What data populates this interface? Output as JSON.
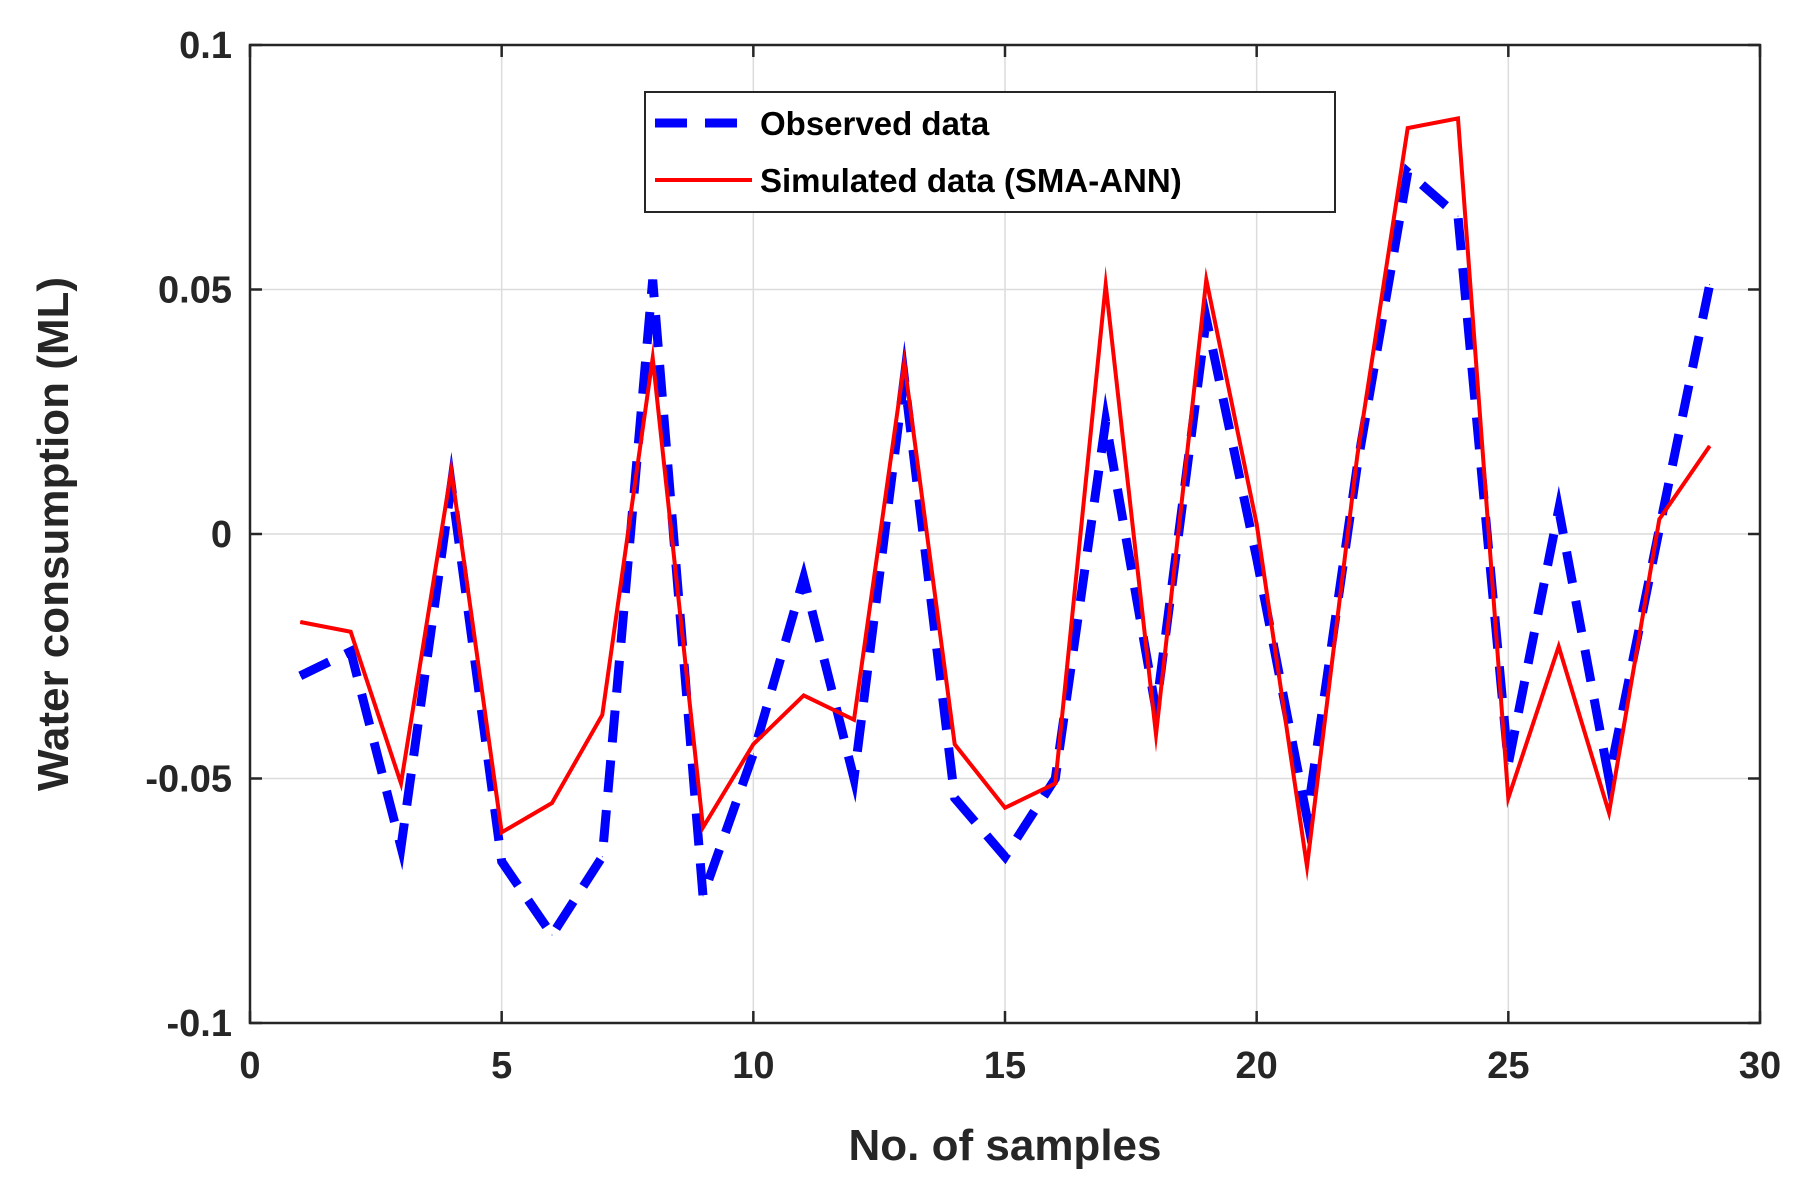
{
  "chart_data": {
    "type": "line",
    "title": "",
    "xlabel": "No. of samples",
    "ylabel": "Water consumption (ML)",
    "xlim": [
      0,
      30
    ],
    "ylim": [
      -0.1,
      0.1
    ],
    "xticks": [
      0,
      5,
      10,
      15,
      20,
      25,
      30
    ],
    "xtick_labels": [
      "0",
      "5",
      "10",
      "15",
      "20",
      "25",
      "30"
    ],
    "yticks": [
      -0.1,
      -0.05,
      0,
      0.05,
      0.1
    ],
    "ytick_labels": [
      "-0.1",
      "-0.05",
      "0",
      "0.05",
      "0.1"
    ],
    "grid": true,
    "legend_position": "top-center",
    "x": [
      1,
      2,
      3,
      4,
      5,
      6,
      7,
      8,
      9,
      10,
      11,
      12,
      13,
      14,
      15,
      16,
      17,
      18,
      19,
      20,
      21,
      22,
      23,
      24,
      25,
      26,
      27,
      28,
      29
    ],
    "series": [
      {
        "name": "Observed data",
        "color": "#0000ff",
        "style": "dashed",
        "values": [
          -0.029,
          -0.024,
          -0.064,
          0.01,
          -0.067,
          -0.082,
          -0.066,
          0.052,
          -0.074,
          -0.045,
          -0.009,
          -0.05,
          0.032,
          -0.054,
          -0.066,
          -0.05,
          0.023,
          -0.036,
          0.044,
          -0.005,
          -0.058,
          0.014,
          0.074,
          0.065,
          -0.047,
          0.005,
          -0.05,
          0.001,
          0.051
        ]
      },
      {
        "name": "Simulated data (SMA-ANN)",
        "color": "#ff0000",
        "style": "solid",
        "values": [
          -0.018,
          -0.02,
          -0.051,
          0.013,
          -0.061,
          -0.055,
          -0.037,
          0.036,
          -0.06,
          -0.043,
          -0.033,
          -0.038,
          0.035,
          -0.043,
          -0.056,
          -0.051,
          0.051,
          -0.041,
          0.052,
          0.002,
          -0.068,
          0.016,
          0.083,
          0.085,
          -0.054,
          -0.023,
          -0.057,
          0.003,
          0.018
        ]
      }
    ]
  }
}
